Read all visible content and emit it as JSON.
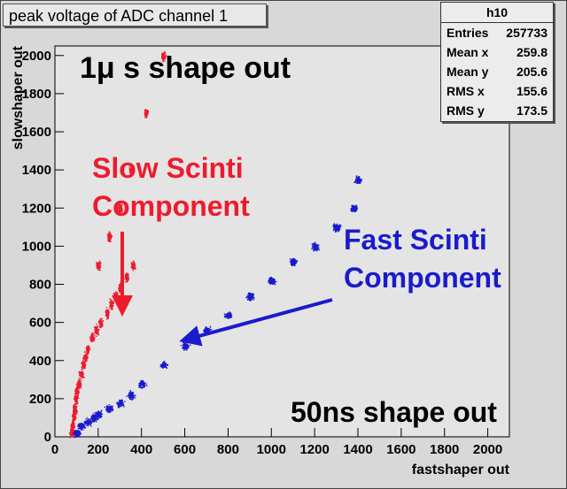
{
  "header": {
    "title": "peak voltage of ADC channel 1"
  },
  "stats": {
    "name": "h10",
    "rows": [
      {
        "label": "Entries",
        "value": "257733"
      },
      {
        "label": "Mean x",
        "value": "259.8"
      },
      {
        "label": "Mean y",
        "value": "205.6"
      },
      {
        "label": "RMS x",
        "value": "155.6"
      },
      {
        "label": "RMS y",
        "value": "173.5"
      }
    ]
  },
  "annotations": {
    "shape_top": "1μ s shape out",
    "slow_line1": "Slow Scinti",
    "slow_line2": "Component",
    "fast_line1": "Fast Scinti",
    "fast_line2": "Component",
    "shape_bottom": "50ns shape out"
  },
  "colors": {
    "background": "#d8d8d8",
    "slow": "#ee1b2e",
    "fast": "#1b1bcc"
  },
  "chart_data": {
    "type": "scatter",
    "title": "peak voltage of ADC channel 1",
    "xlabel": "fastshaper out",
    "ylabel": "slowshaper out",
    "xlim": [
      0,
      2100
    ],
    "ylim": [
      0,
      2050
    ],
    "xticks": [
      0,
      200,
      400,
      600,
      800,
      1000,
      1200,
      1400,
      1600,
      1800,
      2000
    ],
    "yticks": [
      0,
      200,
      400,
      600,
      800,
      1000,
      1200,
      1400,
      1600,
      1800,
      2000
    ],
    "grid": false,
    "series": [
      {
        "name": "Slow Scinti Component",
        "color": "#ee1b2e",
        "points": [
          [
            75,
            20
          ],
          [
            80,
            60
          ],
          [
            85,
            110
          ],
          [
            90,
            150
          ],
          [
            95,
            200
          ],
          [
            100,
            240
          ],
          [
            110,
            280
          ],
          [
            120,
            330
          ],
          [
            130,
            380
          ],
          [
            140,
            420
          ],
          [
            150,
            460
          ],
          [
            170,
            520
          ],
          [
            190,
            560
          ],
          [
            210,
            600
          ],
          [
            240,
            650
          ],
          [
            260,
            700
          ],
          [
            280,
            740
          ],
          [
            300,
            780
          ],
          [
            330,
            840
          ],
          [
            360,
            900
          ],
          [
            200,
            900
          ],
          [
            250,
            1050
          ],
          [
            300,
            1200
          ],
          [
            350,
            1400
          ],
          [
            420,
            1700
          ],
          [
            500,
            2000
          ]
        ]
      },
      {
        "name": "Fast Scinti Component",
        "color": "#1b1bcc",
        "points": [
          [
            100,
            20
          ],
          [
            120,
            60
          ],
          [
            150,
            80
          ],
          [
            180,
            100
          ],
          [
            200,
            120
          ],
          [
            250,
            150
          ],
          [
            300,
            180
          ],
          [
            350,
            220
          ],
          [
            400,
            280
          ],
          [
            500,
            380
          ],
          [
            600,
            480
          ],
          [
            700,
            560
          ],
          [
            800,
            640
          ],
          [
            900,
            740
          ],
          [
            1000,
            820
          ],
          [
            1100,
            920
          ],
          [
            1200,
            1000
          ],
          [
            1300,
            1100
          ],
          [
            1380,
            1200
          ],
          [
            1400,
            1350
          ]
        ]
      }
    ]
  }
}
